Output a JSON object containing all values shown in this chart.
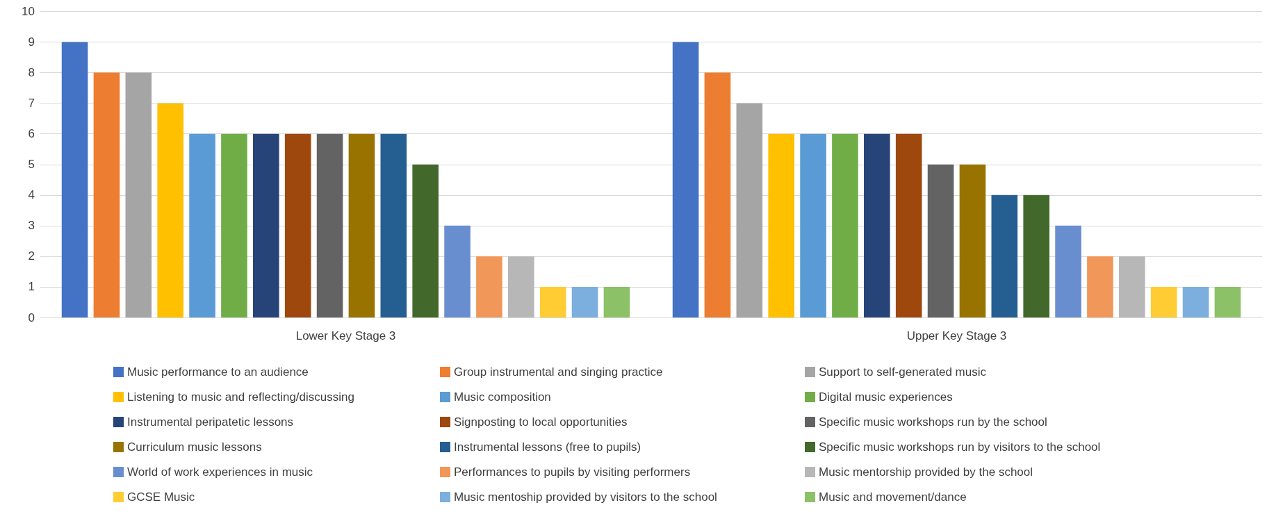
{
  "chart_data": {
    "type": "bar",
    "categories": [
      "Lower Key Stage 3",
      "Upper Key Stage 3"
    ],
    "ylim": [
      0,
      10
    ],
    "yticks": [
      0,
      1,
      2,
      3,
      4,
      5,
      6,
      7,
      8,
      9,
      10
    ],
    "grid": "y",
    "legend": "bottom",
    "series": [
      {
        "name": "Music performance to an audience",
        "color": "#4472c4",
        "values": [
          9,
          9
        ]
      },
      {
        "name": "Group instrumental and singing practice",
        "color": "#ed7d31",
        "values": [
          8,
          8
        ]
      },
      {
        "name": "Support to self-generated music",
        "color": "#a5a5a5",
        "values": [
          8,
          7
        ]
      },
      {
        "name": "Listening to music and reflecting/discussing",
        "color": "#ffc000",
        "values": [
          7,
          6
        ]
      },
      {
        "name": "Music composition",
        "color": "#5b9bd5",
        "values": [
          6,
          6
        ]
      },
      {
        "name": "Digital music experiences",
        "color": "#70ad47",
        "values": [
          6,
          6
        ]
      },
      {
        "name": "Instrumental peripatetic lessons",
        "color": "#264478",
        "values": [
          6,
          6
        ]
      },
      {
        "name": "Signposting to local opportunities",
        "color": "#9e480e",
        "values": [
          6,
          6
        ]
      },
      {
        "name": "Specific music workshops run by the school",
        "color": "#636363",
        "values": [
          6,
          5
        ]
      },
      {
        "name": "Curriculum music lessons",
        "color": "#997300",
        "values": [
          6,
          5
        ]
      },
      {
        "name": "Instrumental lessons (free to pupils)",
        "color": "#255e91",
        "values": [
          6,
          4
        ]
      },
      {
        "name": "Specific music workshops run by visitors to the school",
        "color": "#43682b",
        "values": [
          5,
          4
        ]
      },
      {
        "name": "World of work experiences in music",
        "color": "#698ed0",
        "values": [
          3,
          3
        ]
      },
      {
        "name": "Performances to pupils by visiting performers",
        "color": "#f1975a",
        "values": [
          2,
          2
        ]
      },
      {
        "name": "Music mentorship provided by the school",
        "color": "#b7b7b7",
        "values": [
          2,
          2
        ]
      },
      {
        "name": "GCSE Music",
        "color": "#ffcd33",
        "values": [
          1,
          1
        ]
      },
      {
        "name": "Music mentoship provided by visitors to the school",
        "color": "#7cafdd",
        "values": [
          1,
          1
        ]
      },
      {
        "name": "Music and movement/dance",
        "color": "#8cc168",
        "values": [
          1,
          1
        ]
      }
    ]
  }
}
